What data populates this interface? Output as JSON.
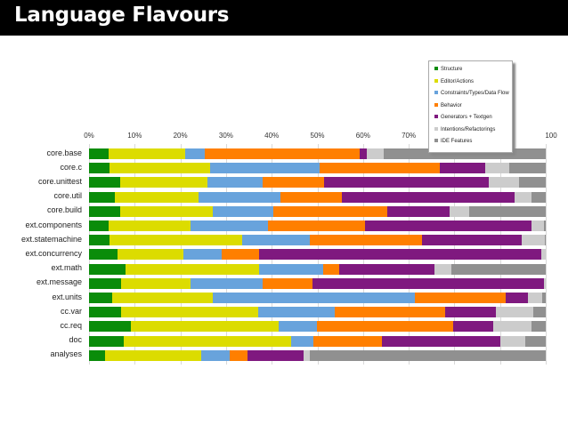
{
  "header": {
    "title": "Language Flavours"
  },
  "colors": {
    "Structure": "#0a8c0a",
    "Editor/Actions": "#dcdc00",
    "Constraints/Types/Data Flow": "#68a3dc",
    "Behavior": "#ff7f00",
    "Generators + Textgen": "#7f197f",
    "Intentions/Refactorings": "#cccccc",
    "IDE Features": "#909090"
  },
  "chart_data": {
    "type": "bar",
    "orientation": "horizontal",
    "stacked": true,
    "normalized_percent": true,
    "title": "Language Flavours",
    "xlabel": "",
    "ylabel": "",
    "xlim": [
      0,
      100
    ],
    "x_ticks": [
      "0%",
      "10%",
      "20%",
      "30%",
      "40%",
      "50%",
      "60%",
      "70%",
      "80%",
      "90%",
      "100"
    ],
    "grid": true,
    "legend_position": "top-right (overlapping plot)",
    "categories": [
      "core.base",
      "core.c",
      "core.unittest",
      "core.util",
      "core.build",
      "ext.components",
      "ext.statemachine",
      "ext.concurrency",
      "ext.math",
      "ext.message",
      "ext.units",
      "cc.var",
      "cc.req",
      "doc",
      "analyses"
    ],
    "series": [
      {
        "name": "Structure",
        "values": [
          4.3,
          4.5,
          6.8,
          5.7,
          6.8,
          4.3,
          4.5,
          6.2,
          8.0,
          7.0,
          5.0,
          7.0,
          9.2,
          7.6,
          3.5
        ]
      },
      {
        "name": "Editor/Actions",
        "values": [
          16.7,
          22.0,
          19.2,
          18.3,
          20.2,
          17.9,
          29.0,
          14.5,
          29.2,
          15.2,
          22.0,
          30.0,
          32.3,
          36.6,
          21.0
        ]
      },
      {
        "name": "Constraints/Types/Data Flow",
        "values": [
          4.3,
          24.0,
          12.0,
          18.0,
          13.3,
          17.0,
          14.8,
          8.3,
          14.0,
          15.8,
          44.3,
          16.8,
          8.4,
          4.9,
          6.3
        ]
      },
      {
        "name": "Behavior",
        "values": [
          34.0,
          26.3,
          13.5,
          13.4,
          25.0,
          21.2,
          24.7,
          8.2,
          3.5,
          10.9,
          19.9,
          24.2,
          29.8,
          15.0,
          3.9
        ]
      },
      {
        "name": "Generators + Textgen",
        "values": [
          1.5,
          9.9,
          36.0,
          37.8,
          13.7,
          36.5,
          21.7,
          61.8,
          20.9,
          50.7,
          4.9,
          11.1,
          8.8,
          25.9,
          12.3
        ]
      },
      {
        "name": "Intentions/Refactorings",
        "values": [
          3.7,
          5.3,
          6.7,
          3.7,
          4.2,
          2.7,
          5.1,
          1.0,
          3.7,
          0.4,
          3.1,
          8.2,
          8.4,
          5.5,
          1.3
        ]
      },
      {
        "name": "IDE Features",
        "values": [
          35.5,
          8.0,
          5.8,
          3.1,
          16.8,
          0.4,
          0.2,
          0.0,
          20.7,
          0.0,
          0.8,
          2.7,
          3.1,
          4.5,
          51.7
        ]
      }
    ]
  }
}
